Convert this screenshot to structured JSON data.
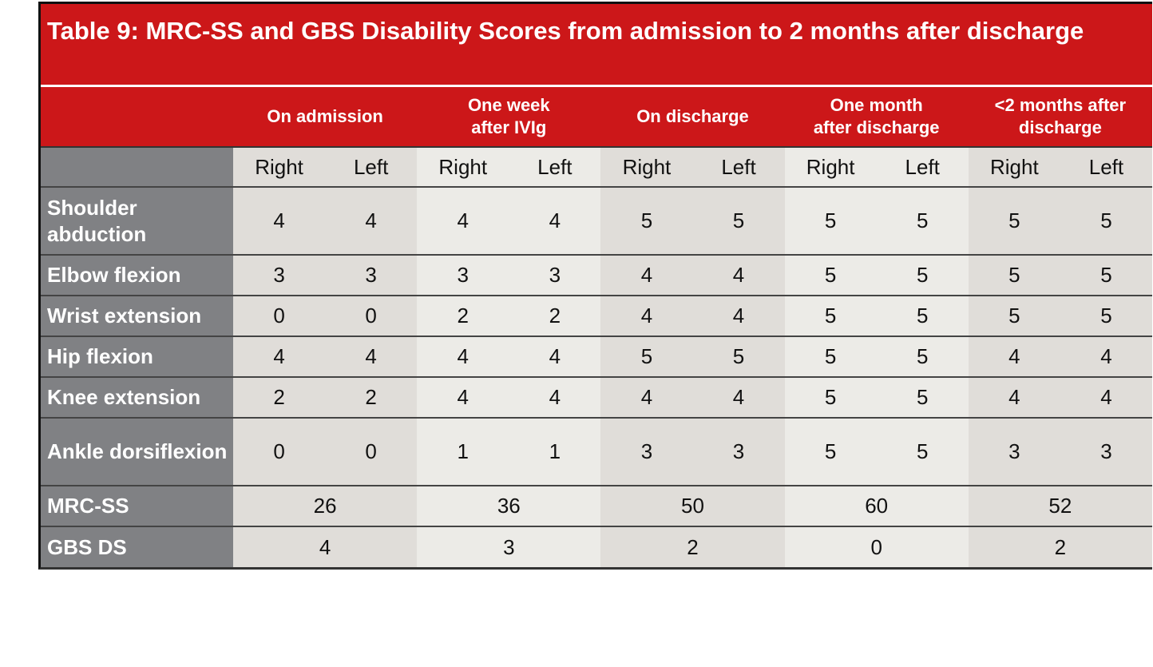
{
  "title": "Table 9: MRC-SS and GBS Disability Scores from admission to 2 months after discharge",
  "groups": [
    "On admission",
    "One week after IVIg",
    "On discharge",
    "One month after discharge",
    "<2 months after discharge"
  ],
  "group_lines": [
    [
      "On admission"
    ],
    [
      "One week",
      "after IVIg"
    ],
    [
      "On discharge"
    ],
    [
      "One month",
      "after discharge"
    ],
    [
      "<2 months after",
      "discharge"
    ]
  ],
  "sides": [
    "Right",
    "Left"
  ],
  "rows": [
    {
      "label": "Shoulder abduction",
      "values": [
        "4",
        "4",
        "4",
        "4",
        "5",
        "5",
        "5",
        "5",
        "5",
        "5"
      ]
    },
    {
      "label": "Elbow flexion",
      "values": [
        "3",
        "3",
        "3",
        "3",
        "4",
        "4",
        "5",
        "5",
        "5",
        "5"
      ]
    },
    {
      "label": "Wrist extension",
      "values": [
        "0",
        "0",
        "2",
        "2",
        "4",
        "4",
        "5",
        "5",
        "5",
        "5"
      ]
    },
    {
      "label": "Hip flexion",
      "values": [
        "4",
        "4",
        "4",
        "4",
        "5",
        "5",
        "5",
        "5",
        "4",
        "4"
      ]
    },
    {
      "label": "Knee extension",
      "values": [
        "2",
        "2",
        "4",
        "4",
        "4",
        "4",
        "5",
        "5",
        "4",
        "4"
      ]
    },
    {
      "label": "Ankle dorsiflexion",
      "values": [
        "0",
        "0",
        "1",
        "1",
        "3",
        "3",
        "5",
        "5",
        "3",
        "3"
      ]
    }
  ],
  "summary": [
    {
      "label": "MRC-SS",
      "values": [
        "26",
        "36",
        "50",
        "60",
        "52"
      ]
    },
    {
      "label": "GBS DS",
      "values": [
        "4",
        "3",
        "2",
        "0",
        "2"
      ]
    }
  ],
  "colors": {
    "header": "#cc1719",
    "label_column": "#808184",
    "band_dark": "#e0ddd9",
    "band_light": "#ecebe7"
  }
}
